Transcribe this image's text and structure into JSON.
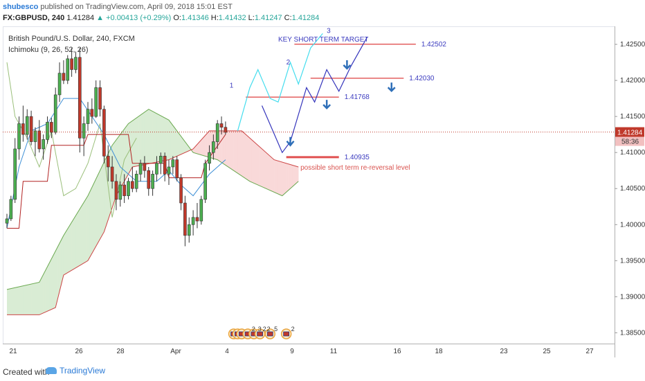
{
  "header": {
    "author": "shubesco",
    "published_text": "published on TradingView.com, April 09, 2018 15:01 EST",
    "symbol": "FX:GBPUSD, 240",
    "last": "1.41284",
    "change_arrow": "▲",
    "change": "+0.00413 (+0.29%)",
    "o_label": "O:",
    "o": "1.41346",
    "h_label": "H:",
    "h": "1.41432",
    "l_label": "L:",
    "l": "1.41247",
    "c_label": "C:",
    "c": "1.41284"
  },
  "legend": {
    "title": "British Pound/U.S. Dollar, 240, FXCM",
    "indicator": "Ichimoku (9, 26, 52, 26)"
  },
  "footer": {
    "created_with": "Created with",
    "brand": "TradingView",
    "logo_icon": "tradingview-cloud-icon"
  },
  "colors": {
    "bull": "#4caf50",
    "bear": "#c0392b",
    "kumo_bull": "#d9ecd4",
    "kumo_bear": "#f9d9d9",
    "tenkan": "#3d8fd6",
    "kijun": "#b22222",
    "chikou": "#9abf7a",
    "target_line": "#e05050",
    "scenario_light": "#44ddee",
    "scenario_dark": "#3333bb",
    "annotation_blue": "#3b3bbf",
    "annotation_red": "#d9534f"
  },
  "chart_data": {
    "type": "candlestick",
    "symbol": "British Pound/U.S. Dollar",
    "timeframe": "240",
    "ylim": [
      1.3835,
      1.4275
    ],
    "y_ticks": [
      "1.42500",
      "1.42000",
      "1.41500",
      "1.41000",
      "1.40500",
      "1.40000",
      "1.39500",
      "1.39000",
      "1.38500"
    ],
    "x_ticks": [
      "21",
      "26",
      "28",
      "Apr",
      "4",
      "9",
      "11",
      "16",
      "18",
      "23",
      "25",
      "27"
    ],
    "last_price": {
      "value": 1.41284,
      "label": "1.41284",
      "countdown": "58:36"
    },
    "candles": [
      [
        1.4002,
        1.4015,
        1.3995,
        1.4008
      ],
      [
        1.4008,
        1.404,
        1.4005,
        1.4035
      ],
      [
        1.4035,
        1.412,
        1.403,
        1.4105
      ],
      [
        1.4105,
        1.415,
        1.409,
        1.414
      ],
      [
        1.414,
        1.4165,
        1.4115,
        1.4125
      ],
      [
        1.4125,
        1.416,
        1.4118,
        1.415
      ],
      [
        1.415,
        1.4158,
        1.411,
        1.4115
      ],
      [
        1.4115,
        1.4135,
        1.4095,
        1.413
      ],
      [
        1.413,
        1.4145,
        1.41,
        1.4105
      ],
      [
        1.4105,
        1.4125,
        1.409,
        1.4118
      ],
      [
        1.4118,
        1.415,
        1.4112,
        1.4142
      ],
      [
        1.4142,
        1.4148,
        1.412,
        1.4128
      ],
      [
        1.4128,
        1.419,
        1.4125,
        1.418
      ],
      [
        1.418,
        1.4225,
        1.417,
        1.421
      ],
      [
        1.421,
        1.4228,
        1.4195,
        1.42
      ],
      [
        1.42,
        1.4235,
        1.4195,
        1.423
      ],
      [
        1.423,
        1.4245,
        1.4205,
        1.4215
      ],
      [
        1.4215,
        1.424,
        1.421,
        1.4232
      ],
      [
        1.4232,
        1.4245,
        1.41,
        1.412
      ],
      [
        1.412,
        1.415,
        1.4095,
        1.414
      ],
      [
        1.414,
        1.417,
        1.413,
        1.416
      ],
      [
        1.416,
        1.4175,
        1.414,
        1.415
      ],
      [
        1.415,
        1.42,
        1.4148,
        1.419
      ],
      [
        1.419,
        1.42,
        1.415,
        1.416
      ],
      [
        1.416,
        1.4165,
        1.4085,
        1.4095
      ],
      [
        1.4095,
        1.411,
        1.406,
        1.408
      ],
      [
        1.408,
        1.4095,
        1.405,
        1.406
      ],
      [
        1.406,
        1.407,
        1.402,
        1.4035
      ],
      [
        1.4035,
        1.406,
        1.4025,
        1.4055
      ],
      [
        1.4055,
        1.407,
        1.403,
        1.404
      ],
      [
        1.404,
        1.4065,
        1.4035,
        1.406
      ],
      [
        1.406,
        1.408,
        1.4045,
        1.405
      ],
      [
        1.405,
        1.4075,
        1.4045,
        1.407
      ],
      [
        1.407,
        1.409,
        1.406,
        1.4085
      ],
      [
        1.4085,
        1.4095,
        1.4065,
        1.4075
      ],
      [
        1.4075,
        1.408,
        1.404,
        1.405
      ],
      [
        1.405,
        1.4075,
        1.404,
        1.407
      ],
      [
        1.407,
        1.4095,
        1.406,
        1.4085
      ],
      [
        1.4085,
        1.41,
        1.407,
        1.4095
      ],
      [
        1.4095,
        1.41,
        1.406,
        1.407
      ],
      [
        1.407,
        1.409,
        1.4055,
        1.408
      ],
      [
        1.408,
        1.4095,
        1.407,
        1.409
      ],
      [
        1.409,
        1.4095,
        1.406,
        1.4065
      ],
      [
        1.4065,
        1.407,
        1.402,
        1.403
      ],
      [
        1.403,
        1.404,
        1.397,
        1.3985
      ],
      [
        1.3985,
        1.401,
        1.3975,
        1.4
      ],
      [
        1.4,
        1.402,
        1.3985,
        1.401
      ],
      [
        1.401,
        1.403,
        1.3995,
        1.4005
      ],
      [
        1.4005,
        1.404,
        1.4,
        1.4035
      ],
      [
        1.4035,
        1.409,
        1.403,
        1.4085
      ],
      [
        1.4085,
        1.411,
        1.4075,
        1.41
      ],
      [
        1.41,
        1.4125,
        1.409,
        1.4115
      ],
      [
        1.4115,
        1.4145,
        1.4105,
        1.414
      ],
      [
        1.414,
        1.415,
        1.4125,
        1.4135
      ],
      [
        1.4135,
        1.4143,
        1.4125,
        1.4128
      ]
    ],
    "kijun": [
      [
        0,
        1.3995
      ],
      [
        3,
        1.3995
      ],
      [
        4,
        1.406
      ],
      [
        10,
        1.406
      ],
      [
        11,
        1.411
      ],
      [
        19,
        1.411
      ],
      [
        20,
        1.4125
      ],
      [
        30,
        1.4125
      ],
      [
        31,
        1.4085
      ],
      [
        39,
        1.4085
      ],
      [
        40,
        1.4065
      ],
      [
        48,
        1.4065
      ],
      [
        49,
        1.4085
      ],
      [
        54,
        1.4125
      ]
    ],
    "tenkan": [
      [
        0,
        1.3995
      ],
      [
        3,
        1.408
      ],
      [
        6,
        1.413
      ],
      [
        10,
        1.414
      ],
      [
        14,
        1.4175
      ],
      [
        18,
        1.4175
      ],
      [
        21,
        1.415
      ],
      [
        24,
        1.4125
      ],
      [
        28,
        1.408
      ],
      [
        32,
        1.406
      ],
      [
        37,
        1.406
      ],
      [
        40,
        1.4075
      ],
      [
        43,
        1.4055
      ],
      [
        46,
        1.404
      ],
      [
        50,
        1.407
      ],
      [
        54,
        1.409
      ]
    ],
    "chikou": [
      [
        0,
        1.4225
      ],
      [
        2,
        1.415
      ],
      [
        5,
        1.412
      ],
      [
        8,
        1.408
      ],
      [
        11,
        1.413
      ],
      [
        14,
        1.404
      ],
      [
        17,
        1.405
      ],
      [
        20,
        1.4085
      ],
      [
        23,
        1.414
      ],
      [
        26,
        1.401
      ],
      [
        29,
        1.409
      ],
      [
        32,
        1.412
      ]
    ],
    "span_a": [
      [
        0,
        1.391
      ],
      [
        8,
        1.392
      ],
      [
        14,
        1.3985
      ],
      [
        20,
        1.404
      ],
      [
        26,
        1.411
      ],
      [
        30,
        1.414
      ],
      [
        35,
        1.416
      ],
      [
        40,
        1.4145
      ],
      [
        46,
        1.41
      ],
      [
        52,
        1.409
      ],
      [
        56,
        1.4075
      ],
      [
        60,
        1.406
      ],
      [
        64,
        1.405
      ],
      [
        68,
        1.404
      ],
      [
        72,
        1.406
      ]
    ],
    "span_b": [
      [
        0,
        1.3875
      ],
      [
        8,
        1.3875
      ],
      [
        12,
        1.3885
      ],
      [
        14,
        1.393
      ],
      [
        20,
        1.395
      ],
      [
        24,
        1.399
      ],
      [
        27,
        1.404
      ],
      [
        31,
        1.408
      ],
      [
        40,
        1.409
      ],
      [
        46,
        1.4105
      ],
      [
        50,
        1.413
      ],
      [
        58,
        1.413
      ],
      [
        62,
        1.411
      ],
      [
        66,
        1.409
      ],
      [
        72,
        1.408
      ]
    ],
    "levels": [
      {
        "value": 1.42502,
        "label": "1.42502",
        "from": 71,
        "to": 101
      },
      {
        "value": 1.4203,
        "label": "1.42030",
        "from": 75,
        "to": 98
      },
      {
        "value": 1.41768,
        "label": "1.41768",
        "from": 59,
        "to": 82
      },
      {
        "value": 1.40935,
        "label": "1.40935",
        "from": 69,
        "to": 82
      }
    ],
    "scenario_light": [
      [
        57,
        1.413
      ],
      [
        60,
        1.419
      ],
      [
        62,
        1.4215
      ],
      [
        65,
        1.4175
      ],
      [
        67,
        1.417
      ],
      [
        70,
        1.4225
      ],
      [
        72,
        1.4195
      ],
      [
        75,
        1.4245
      ],
      [
        78,
        1.4265
      ]
    ],
    "scenario_dark": [
      [
        63,
        1.4165
      ],
      [
        68,
        1.41
      ],
      [
        70,
        1.4115
      ],
      [
        74,
        1.419
      ],
      [
        76,
        1.417
      ],
      [
        79,
        1.4215
      ],
      [
        82,
        1.4185
      ],
      [
        85,
        1.422
      ],
      [
        89,
        1.426
      ]
    ],
    "arrows_up": [
      [
        84,
        1.4228
      ],
      [
        79,
        1.4173
      ],
      [
        95,
        1.4197
      ]
    ],
    "arrows_down": [
      [
        70,
        1.411
      ]
    ],
    "annotations": [
      {
        "text": "KEY SHORT TERM TARGET",
        "x": 67,
        "y": 1.4254,
        "color": "blue"
      },
      {
        "text": "possible short term re-reversal level",
        "x": 72.5,
        "y": 1.4076,
        "color": "red"
      },
      {
        "text": "1",
        "x": 55,
        "y": 1.419,
        "color": "blue"
      },
      {
        "text": "2",
        "x": 69,
        "y": 1.4222,
        "color": "blue"
      },
      {
        "text": "3",
        "x": 79,
        "y": 1.4266,
        "color": "blue"
      }
    ],
    "event_icons": [
      [
        56,
        "flag-icon"
      ],
      [
        57,
        "flag-icon"
      ],
      [
        58,
        "flag-icon"
      ],
      [
        59.5,
        "flag-icon"
      ],
      [
        61,
        "flag-icon"
      ],
      [
        62.5,
        "flag-icon"
      ],
      [
        65,
        "flag-icon"
      ],
      [
        69,
        "flag-icon"
      ]
    ],
    "event_labels": [
      [
        60.5,
        "2"
      ],
      [
        62,
        "3"
      ],
      [
        63.2,
        "2"
      ],
      [
        64.2,
        "2"
      ],
      [
        66,
        "5"
      ],
      [
        70.2,
        "2"
      ]
    ]
  }
}
